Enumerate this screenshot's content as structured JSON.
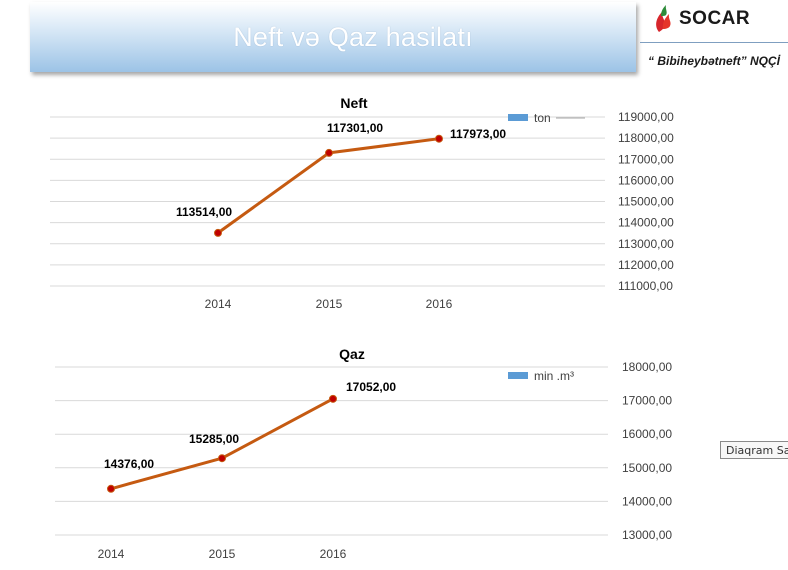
{
  "header": {
    "title": "Neft və Qaz hasilatı",
    "logo_text": "SOCAR",
    "company": "“ Bibiheybətneft” NQÇİ"
  },
  "tooltip": "Diaqram Sahəsi",
  "colors": {
    "line": "#c55a11",
    "marker": "#c00000",
    "legend": "#5b9bd5",
    "grid": "#d9d9d9",
    "banner": "#9cc3e6"
  },
  "chart_data": [
    {
      "type": "line",
      "title": "Neft",
      "categories": [
        "2014",
        "2015",
        "2016"
      ],
      "series": [
        {
          "name": "ton",
          "values": [
            113514.0,
            117301.0,
            117973.0
          ]
        }
      ],
      "data_labels": [
        "113514,00",
        "117301,00",
        "117973,00"
      ],
      "ylim": [
        111000,
        119000
      ],
      "ytick_labels": [
        "119000,00",
        "118000,00",
        "117000,00",
        "116000,00",
        "115000,00",
        "114000,00",
        "113000,00",
        "112000,00",
        "111000,00"
      ],
      "y_axis_position": "right",
      "legend_position": "top-right",
      "grid": true
    },
    {
      "type": "line",
      "title": "Qaz",
      "categories": [
        "2014",
        "2015",
        "2016"
      ],
      "series": [
        {
          "name": "min .m³",
          "values": [
            14376.0,
            15285.0,
            17052.0
          ]
        }
      ],
      "data_labels": [
        "14376,00",
        "15285,00",
        "17052,00"
      ],
      "ylim": [
        13000,
        18000
      ],
      "ytick_labels": [
        "18000,00",
        "17000,00",
        "16000,00",
        "15000,00",
        "14000,00",
        "13000,00"
      ],
      "y_axis_position": "right",
      "legend_position": "top-right",
      "grid": true
    }
  ]
}
